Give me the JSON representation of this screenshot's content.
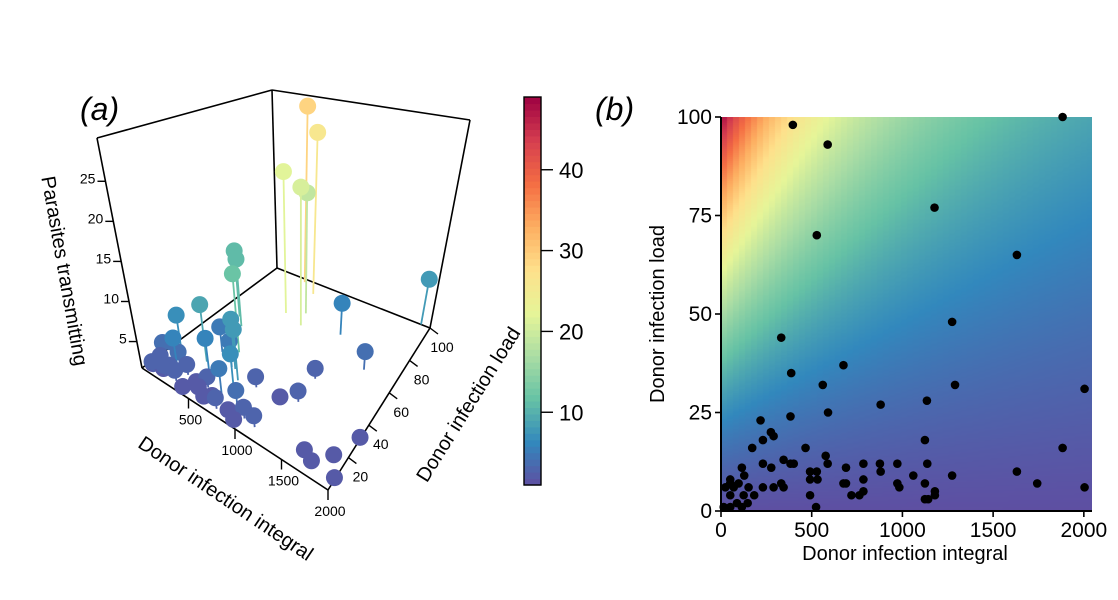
{
  "chart_data": [
    {
      "type": "scatter",
      "panel_label": "(a)",
      "projection": "3d",
      "xlabel": "Donor infection integral",
      "ylabel": "Donor infection load",
      "zlabel": "Parasites transmitting",
      "xticks": [
        "500",
        "1000",
        "1500",
        "2000"
      ],
      "yticks": [
        "20",
        "40",
        "60",
        "80",
        "100"
      ],
      "zticks": [
        "5",
        "10",
        "15",
        "20",
        "25"
      ],
      "xlim": [
        0,
        2000
      ],
      "ylim": [
        0,
        100
      ],
      "zlim": [
        1.7,
        30.4
      ],
      "colorbar": {
        "ticks": [
          "10",
          "20",
          "30",
          "40"
        ],
        "range": [
          1,
          49
        ],
        "colormap": "Spectral (reversed)"
      },
      "points": [
        [
          396,
          98,
          29
        ],
        [
          588,
          93,
          26
        ],
        [
          530,
          75,
          22
        ],
        [
          700,
          80,
          19
        ],
        [
          760,
          72,
          21
        ],
        [
          1883,
          100,
          8
        ],
        [
          1177,
          77,
          6
        ],
        [
          1631,
          65,
          4
        ],
        [
          1274,
          48,
          3
        ],
        [
          2004,
          31,
          2
        ],
        [
          1290,
          32,
          3
        ],
        [
          880,
          27,
          3
        ],
        [
          1135,
          28,
          2
        ],
        [
          1631,
          10,
          2
        ],
        [
          1883,
          16,
          2
        ],
        [
          2004,
          6,
          2
        ],
        [
          1743,
          7,
          2
        ],
        [
          200,
          60,
          11
        ],
        [
          300,
          55,
          11
        ],
        [
          350,
          25,
          9
        ],
        [
          500,
          40,
          12
        ],
        [
          600,
          30,
          8
        ],
        [
          700,
          25,
          8
        ],
        [
          450,
          20,
          6
        ],
        [
          800,
          15,
          7
        ],
        [
          150,
          20,
          7
        ],
        [
          250,
          10,
          6
        ],
        [
          380,
          35,
          5
        ],
        [
          560,
          30,
          5
        ],
        [
          700,
          12,
          5
        ],
        [
          900,
          10,
          4
        ],
        [
          1000,
          8,
          3
        ],
        [
          1124,
          7,
          3
        ],
        [
          50,
          5,
          2
        ],
        [
          100,
          8,
          3
        ],
        [
          150,
          6,
          2
        ],
        [
          200,
          4,
          3
        ],
        [
          300,
          5,
          3
        ],
        [
          400,
          3,
          2
        ],
        [
          500,
          8,
          2
        ],
        [
          600,
          5,
          2
        ],
        [
          100,
          2,
          3
        ],
        [
          250,
          12,
          4
        ],
        [
          330,
          12,
          3
        ],
        [
          450,
          10,
          2
        ],
        [
          550,
          12,
          3
        ],
        [
          650,
          8,
          2
        ],
        [
          750,
          4,
          3
        ],
        [
          850,
          6,
          2
        ],
        [
          950,
          3,
          2
        ],
        [
          230,
          6,
          3
        ],
        [
          80,
          12,
          4
        ],
        [
          120,
          15,
          4
        ]
      ]
    },
    {
      "type": "heatmap",
      "panel_label": "(b)",
      "xlabel": "Donor infection integral",
      "ylabel": "Donor infection load",
      "xlim": [
        0,
        2045
      ],
      "ylim": [
        0,
        100
      ],
      "xticks": [
        "0",
        "500",
        "1000",
        "1500",
        "2000"
      ],
      "yticks": [
        "0",
        "25",
        "50",
        "75",
        "100"
      ],
      "surface_range": [
        1,
        49
      ],
      "points_x": [
        396,
        588,
        1177,
        528,
        1631,
        1274,
        332,
        675,
        387,
        561,
        1290,
        2004,
        880,
        1135,
        383,
        590,
        218,
        275,
        290,
        231,
        172,
        466,
        1124,
        1883,
        577,
        345,
        383,
        401,
        231,
        588,
        785,
        876,
        972,
        1137,
        115,
        277,
        689,
        491,
        528,
        880,
        1631,
        128,
        1060,
        1274,
        51,
        491,
        532,
        785,
        97,
        51,
        675,
        689,
        972,
        1124,
        1743,
        332,
        24,
        231,
        290,
        345,
        983,
        2004,
        152,
        70,
        785,
        1179,
        183,
        719,
        763,
        491,
        1179,
        51,
        125,
        1124,
        1142,
        147,
        88,
        15,
        51,
        115,
        524,
        1883
      ],
      "points_y": [
        98,
        93,
        77,
        70,
        65,
        48,
        44,
        37,
        35,
        32,
        32,
        31,
        27,
        28,
        24,
        25,
        23,
        20,
        19,
        18,
        16,
        16,
        18,
        16,
        14,
        13,
        12,
        12,
        12,
        12,
        12,
        12,
        12,
        12,
        11,
        11,
        11,
        10,
        10,
        10,
        10,
        9,
        9,
        9,
        8,
        8,
        8,
        8,
        7,
        7,
        7,
        7,
        7,
        7,
        7,
        7,
        6,
        6,
        6,
        6,
        6,
        6,
        6,
        6,
        5,
        5,
        4,
        4,
        4,
        4,
        4,
        4,
        4,
        3,
        3,
        2,
        2,
        1,
        1,
        1,
        1,
        100
      ]
    }
  ]
}
